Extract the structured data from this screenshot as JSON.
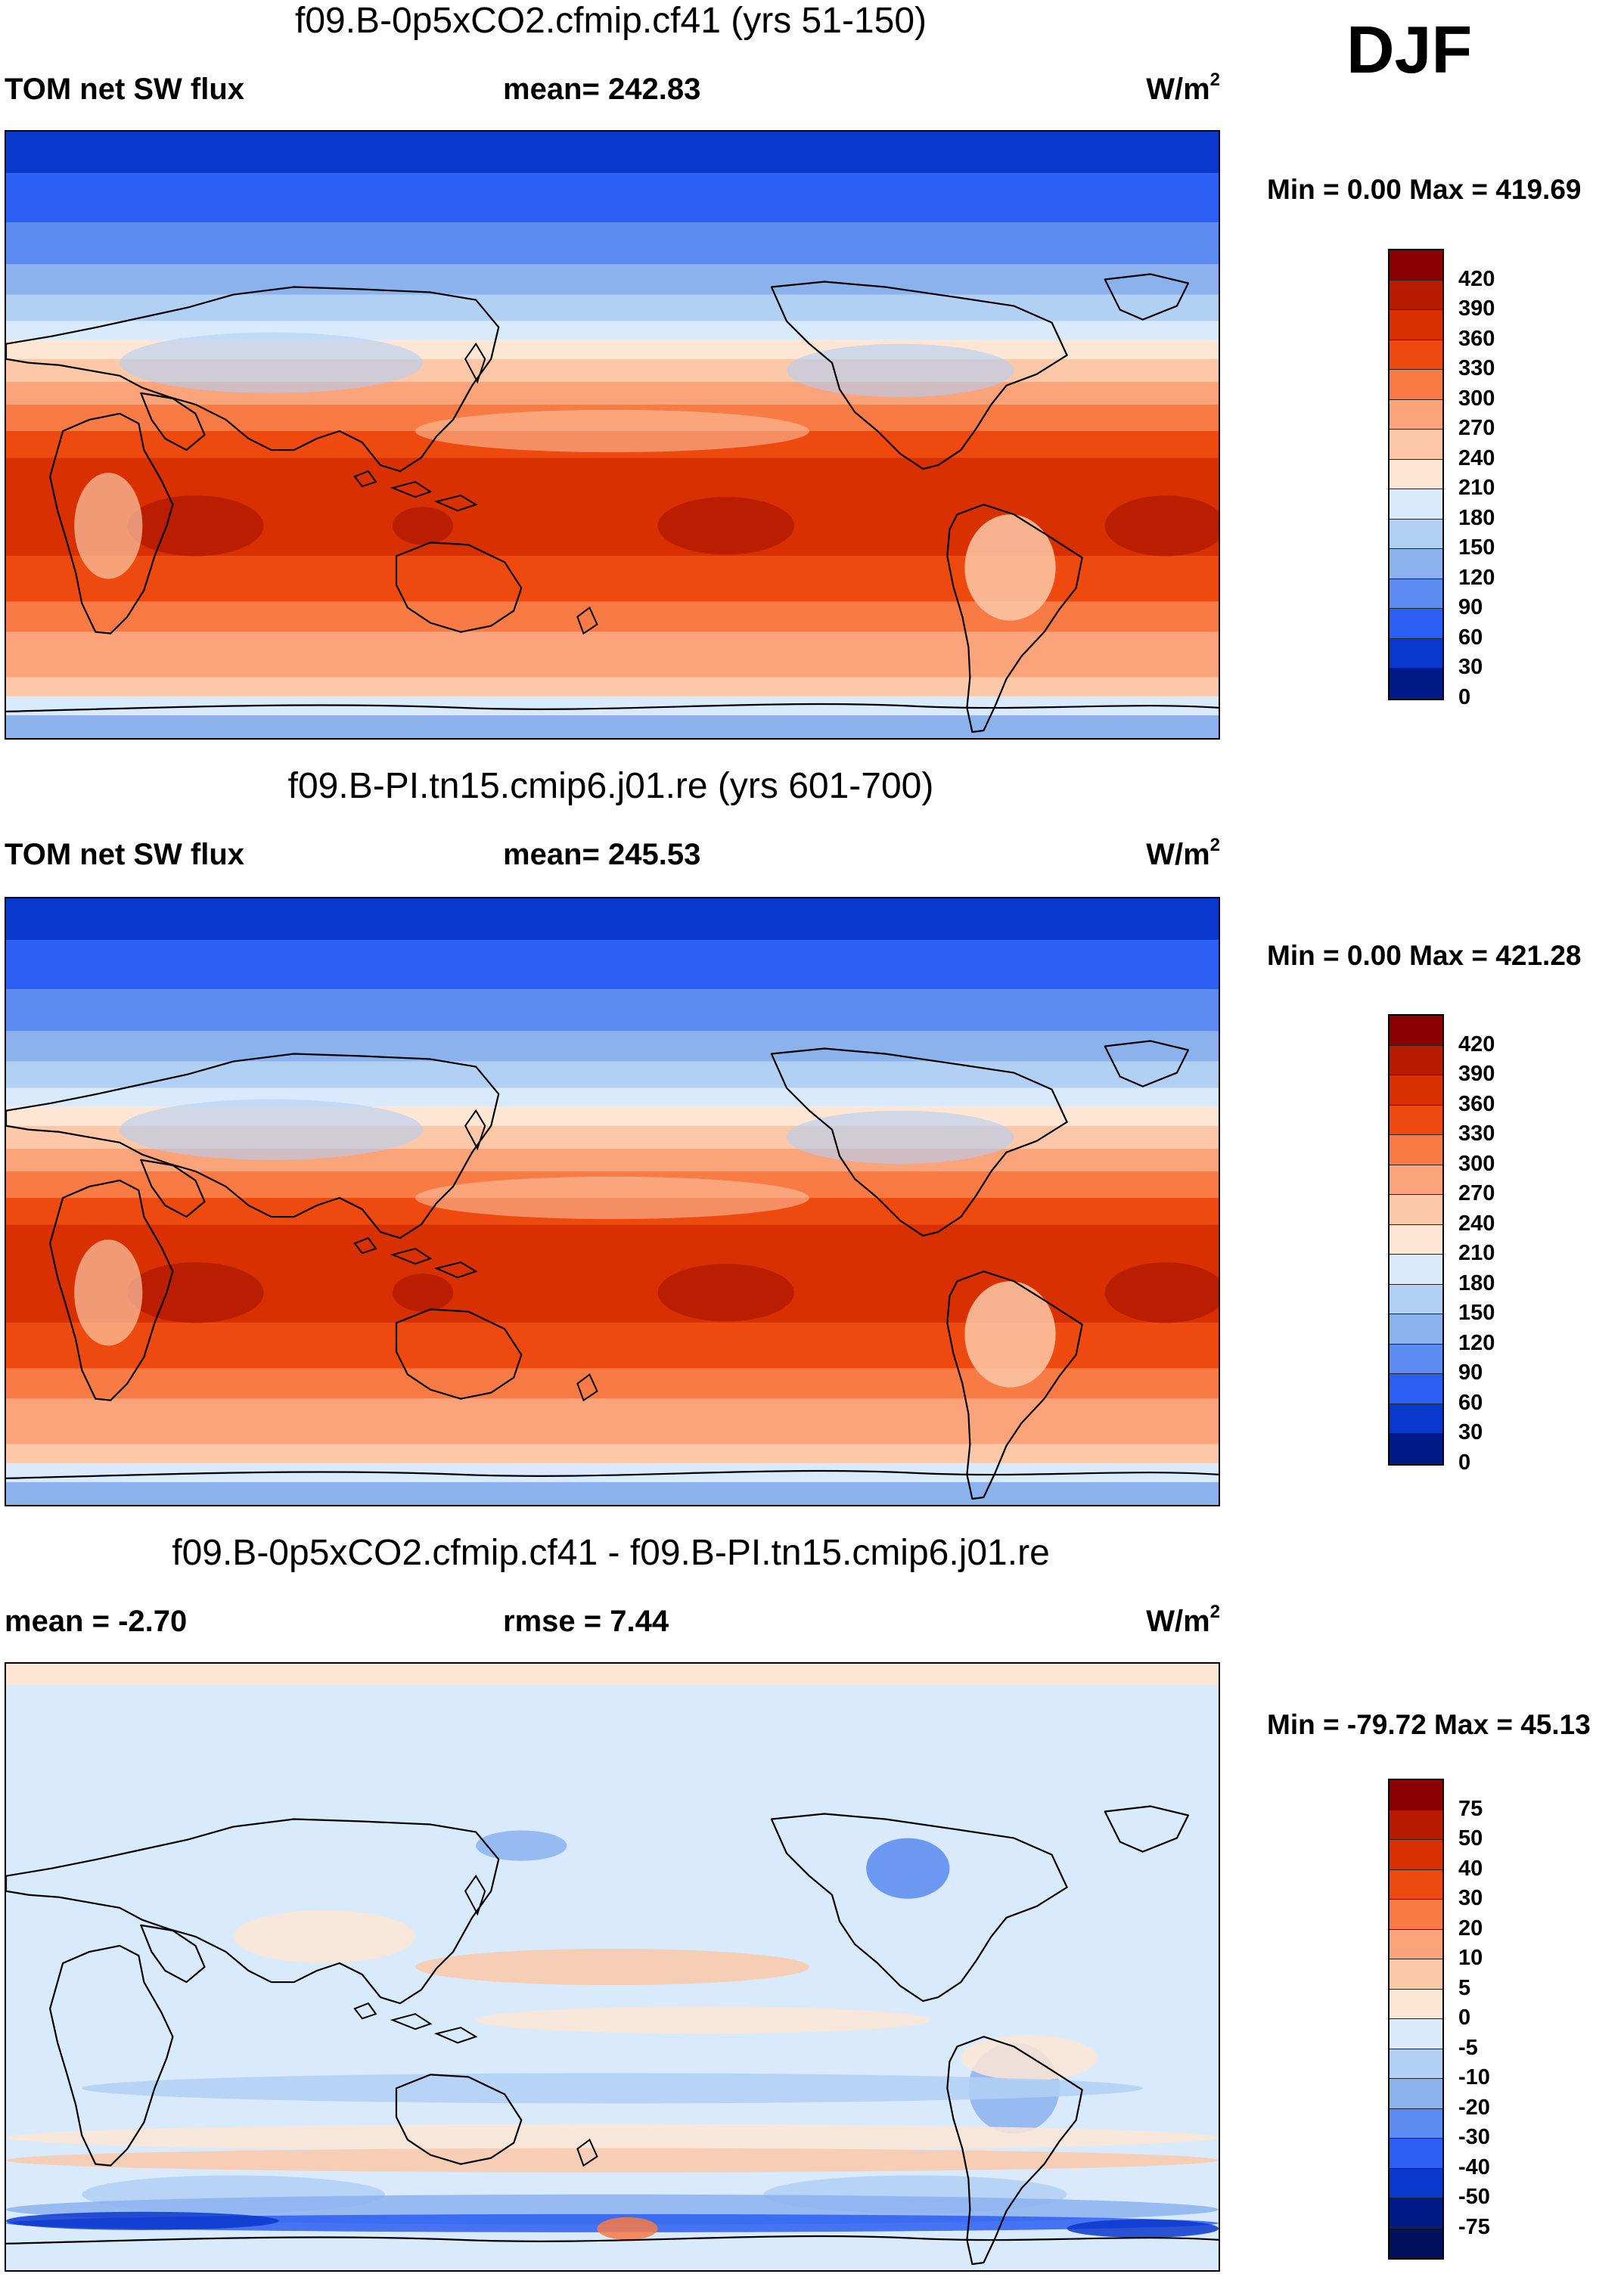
{
  "season": "DJF",
  "panels": [
    {
      "title": "f09.B-0p5xCO2.cfmip.cf41 (yrs 51-150)",
      "left_label": "TOM net SW flux",
      "mid_label": "mean= 242.83",
      "units": "W/m",
      "units_sup": "2",
      "minmax": "Min =   0.00 Max = 419.69",
      "levels": [
        "420",
        "390",
        "360",
        "330",
        "300",
        "270",
        "240",
        "210",
        "180",
        "150",
        "120",
        "90",
        "60",
        "30",
        "0"
      ],
      "colors": [
        "#8b0000",
        "#b81c00",
        "#d83000",
        "#ee4a10",
        "#f87a45",
        "#fba47c",
        "#fcc8a8",
        "#fde6d4",
        "#d8eafb",
        "#b2cff4",
        "#8cb2ee",
        "#5b8af0",
        "#2b5ef2",
        "#0a37cc",
        "#001a88"
      ],
      "map_type": "absolute"
    },
    {
      "title": "f09.B-PI.tn15.cmip6.j01.re (yrs 601-700)",
      "left_label": "TOM net SW flux",
      "mid_label": "mean= 245.53",
      "units": "W/m",
      "units_sup": "2",
      "minmax": "Min =   0.00 Max = 421.28",
      "levels": [
        "420",
        "390",
        "360",
        "330",
        "300",
        "270",
        "240",
        "210",
        "180",
        "150",
        "120",
        "90",
        "60",
        "30",
        "0"
      ],
      "colors": [
        "#8b0000",
        "#b81c00",
        "#d83000",
        "#ee4a10",
        "#f87a45",
        "#fba47c",
        "#fcc8a8",
        "#fde6d4",
        "#d8eafb",
        "#b2cff4",
        "#8cb2ee",
        "#5b8af0",
        "#2b5ef2",
        "#0a37cc",
        "#001a88"
      ],
      "map_type": "absolute"
    },
    {
      "title": "f09.B-0p5xCO2.cfmip.cf41 - f09.B-PI.tn15.cmip6.j01.re",
      "left_label": "mean =  -2.70",
      "mid_label": "rmse =   7.44",
      "units": "W/m",
      "units_sup": "2",
      "minmax": "Min = -79.72 Max =  45.13",
      "levels": [
        "75",
        "50",
        "40",
        "30",
        "20",
        "10",
        "5",
        "0",
        "-5",
        "-10",
        "-20",
        "-30",
        "-40",
        "-50",
        "-75"
      ],
      "colors": [
        "#8b0000",
        "#b81c00",
        "#d83000",
        "#ee4a10",
        "#f87a45",
        "#fba47c",
        "#fcc8a8",
        "#fde6d4",
        "#d8eafb",
        "#b2cff4",
        "#8cb2ee",
        "#5b8af0",
        "#2b5ef2",
        "#0a37cc",
        "#001a88",
        "#00105a"
      ],
      "map_type": "difference"
    }
  ]
}
